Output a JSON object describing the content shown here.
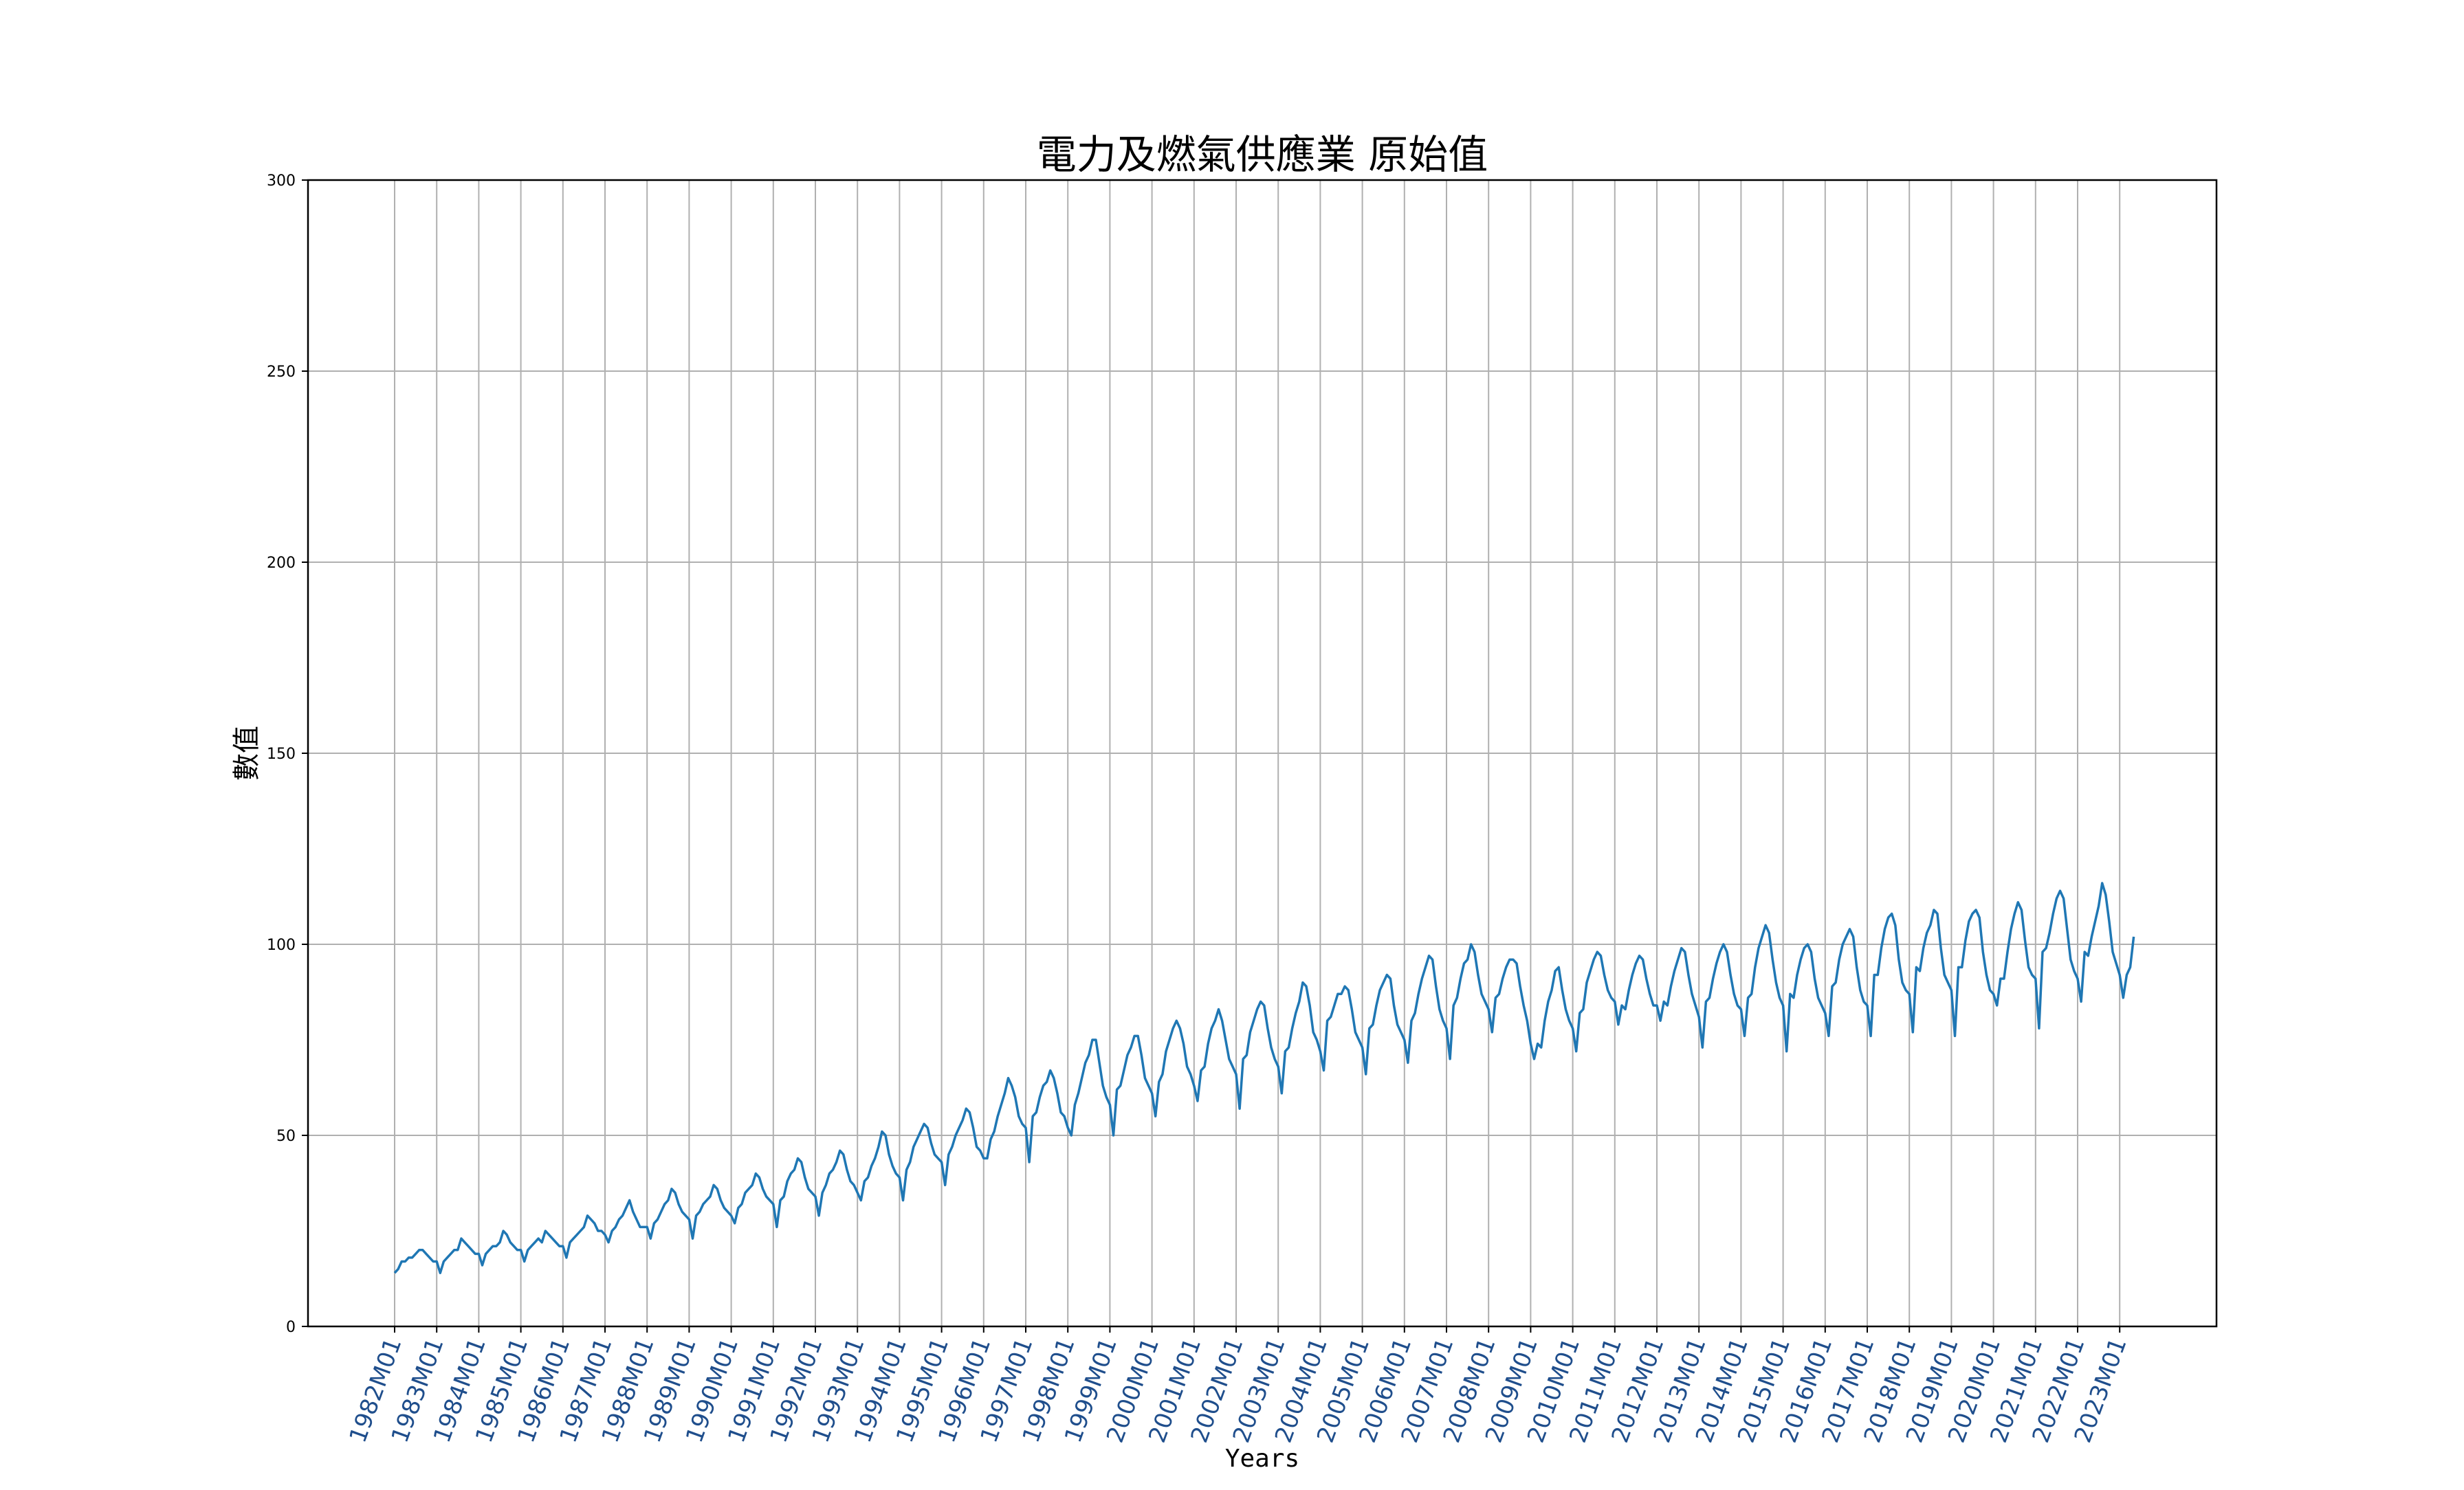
{
  "chart_data": {
    "type": "line",
    "title": "電力及燃氣供應業 原始值",
    "xlabel": "Years",
    "ylabel": "數值",
    "ylim": [
      0,
      300
    ],
    "yticks": [
      0,
      50,
      100,
      150,
      200,
      250,
      300
    ],
    "grid": true,
    "line_color": "#1f77b4",
    "x_tick_labels": [
      "1982M01",
      "1983M01",
      "1984M01",
      "1985M01",
      "1986M01",
      "1987M01",
      "1988M01",
      "1989M01",
      "1990M01",
      "1991M01",
      "1992M01",
      "1993M01",
      "1994M01",
      "1995M01",
      "1996M01",
      "1997M01",
      "1998M01",
      "1999M01",
      "2000M01",
      "2001M01",
      "2002M01",
      "2003M01",
      "2004M01",
      "2005M01",
      "2006M01",
      "2007M01",
      "2008M01",
      "2009M01",
      "2010M01",
      "2011M01",
      "2012M01",
      "2013M01",
      "2014M01",
      "2015M01",
      "2016M01",
      "2017M01",
      "2018M01",
      "2019M01",
      "2020M01",
      "2021M01",
      "2022M01",
      "2023M01"
    ],
    "x_start": "1982M01",
    "series": [
      {
        "values": [
          14,
          15,
          17,
          17,
          18,
          18,
          19,
          20,
          20,
          19,
          18,
          17,
          17,
          14,
          17,
          18,
          19,
          20,
          20,
          23,
          22,
          21,
          20,
          19,
          19,
          16,
          19,
          20,
          21,
          21,
          22,
          25,
          24,
          22,
          21,
          20,
          20,
          17,
          20,
          21,
          22,
          23,
          22,
          25,
          24,
          23,
          22,
          21,
          21,
          18,
          22,
          23,
          24,
          25,
          26,
          29,
          28,
          27,
          25,
          25,
          24,
          22,
          25,
          26,
          28,
          29,
          31,
          33,
          30,
          28,
          26,
          26,
          26,
          23,
          27,
          28,
          30,
          32,
          33,
          36,
          35,
          32,
          30,
          29,
          28,
          23,
          29,
          30,
          32,
          33,
          34,
          37,
          36,
          33,
          31,
          30,
          29,
          27,
          31,
          32,
          35,
          36,
          37,
          40,
          39,
          36,
          34,
          33,
          32,
          26,
          33,
          34,
          38,
          40,
          41,
          44,
          43,
          39,
          36,
          35,
          34,
          29,
          35,
          37,
          40,
          41,
          43,
          46,
          45,
          41,
          38,
          37,
          35,
          33,
          38,
          39,
          42,
          44,
          47,
          51,
          50,
          45,
          42,
          40,
          39,
          33,
          41,
          43,
          47,
          49,
          51,
          53,
          52,
          48,
          45,
          44,
          43,
          37,
          45,
          47,
          50,
          52,
          54,
          57,
          56,
          52,
          47,
          46,
          44,
          44,
          49,
          51,
          55,
          58,
          61,
          65,
          63,
          60,
          55,
          53,
          52,
          43,
          55,
          56,
          60,
          63,
          64,
          67,
          65,
          61,
          56,
          55,
          52,
          50,
          58,
          61,
          65,
          69,
          71,
          75,
          75,
          69,
          63,
          60,
          58,
          50,
          62,
          63,
          67,
          71,
          73,
          76,
          76,
          71,
          65,
          63,
          61,
          55,
          64,
          66,
          72,
          75,
          78,
          80,
          78,
          74,
          68,
          66,
          63,
          59,
          67,
          68,
          74,
          78,
          80,
          83,
          80,
          75,
          70,
          68,
          66,
          57,
          70,
          71,
          77,
          80,
          83,
          85,
          84,
          78,
          73,
          70,
          68,
          61,
          72,
          73,
          78,
          82,
          85,
          90,
          89,
          84,
          77,
          75,
          72,
          67,
          80,
          81,
          84,
          87,
          87,
          89,
          88,
          83,
          77,
          75,
          73,
          66,
          78,
          79,
          84,
          88,
          90,
          92,
          91,
          84,
          79,
          77,
          75,
          69,
          80,
          82,
          87,
          91,
          94,
          97,
          96,
          89,
          83,
          80,
          78,
          70,
          84,
          86,
          91,
          95,
          96,
          100,
          98,
          92,
          87,
          85,
          83,
          77,
          86,
          87,
          91,
          94,
          96,
          96,
          95,
          89,
          84,
          80,
          74,
          70,
          74,
          73,
          80,
          85,
          88,
          93,
          94,
          88,
          83,
          80,
          78,
          72,
          82,
          83,
          90,
          93,
          96,
          98,
          97,
          92,
          88,
          86,
          85,
          79,
          84,
          83,
          88,
          92,
          95,
          97,
          96,
          91,
          87,
          84,
          84,
          80,
          85,
          84,
          89,
          93,
          96,
          99,
          98,
          92,
          87,
          84,
          81,
          73,
          85,
          86,
          91,
          95,
          98,
          100,
          98,
          92,
          87,
          84,
          83,
          76,
          86,
          87,
          94,
          99,
          102,
          105,
          103,
          96,
          90,
          86,
          84,
          72,
          87,
          86,
          92,
          96,
          99,
          100,
          98,
          91,
          86,
          84,
          82,
          76,
          89,
          90,
          96,
          100,
          102,
          104,
          102,
          94,
          88,
          85,
          84,
          76,
          92,
          92,
          99,
          104,
          107,
          108,
          105,
          96,
          90,
          88,
          87,
          77,
          94,
          93,
          99,
          103,
          105,
          109,
          108,
          99,
          92,
          90,
          88,
          76,
          94,
          94,
          101,
          106,
          108,
          109,
          107,
          98,
          92,
          88,
          87,
          84,
          91,
          91,
          98,
          104,
          108,
          111,
          109,
          101,
          94,
          92,
          91,
          78,
          98,
          99,
          103,
          108,
          112,
          114,
          112,
          104,
          96,
          93,
          91,
          85,
          98,
          97,
          102,
          106,
          110,
          116,
          113,
          106,
          98,
          95,
          92,
          86,
          92,
          94,
          102
        ]
      }
    ]
  }
}
